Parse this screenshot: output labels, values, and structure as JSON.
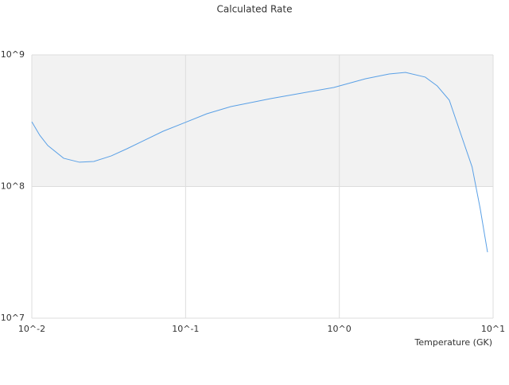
{
  "chart_data": {
    "type": "line",
    "title": "Calculated Rate",
    "x_label": "Temperature (GK)",
    "x": [
      0.01,
      0.01127,
      0.0127,
      0.0161,
      0.0204,
      0.0253,
      0.0329,
      0.0417,
      0.0529,
      0.0714,
      0.0962,
      0.1375,
      0.197,
      0.357,
      0.572,
      0.919,
      1.48,
      2.11,
      2.69,
      3.62,
      4.33,
      5.19,
      6.23,
      7.3,
      8.24,
      9.2
    ],
    "series": [
      {
        "name": "Rate",
        "color": "#5aa0e6",
        "values": [
          310000000,
          245000000,
          205000000,
          164000000,
          153000000,
          155000000,
          171000000,
          194000000,
          222000000,
          263000000,
          302000000,
          357000000,
          405000000,
          465000000,
          513000000,
          565000000,
          659000000,
          716000000,
          736000000,
          678000000,
          581000000,
          453000000,
          242000000,
          141000000,
          68200000,
          31700000
        ]
      }
    ],
    "xlog": true,
    "ylog": true,
    "xlim": [
      0.01,
      10
    ],
    "ylim": [
      10000000,
      1000000000
    ],
    "xticks": [
      {
        "value": 0.01,
        "label": "10^-2"
      },
      {
        "value": 0.1,
        "label": "10^-1"
      },
      {
        "value": 1,
        "label": "10^0"
      },
      {
        "value": 10,
        "label": "10^1"
      }
    ],
    "yticks": [
      {
        "value": 10000000,
        "label": "10^7"
      },
      {
        "value": 100000000,
        "label": "10^8"
      },
      {
        "value": 1000000000,
        "label": "10^9"
      }
    ],
    "grid": true,
    "band_color": "#f2f2f2"
  }
}
